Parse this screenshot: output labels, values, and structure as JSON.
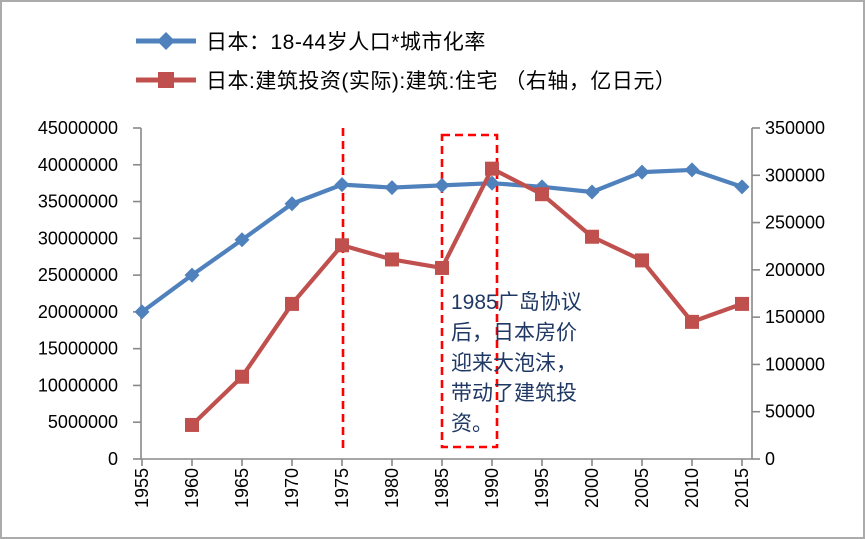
{
  "chart_data": {
    "type": "line",
    "title": "",
    "x_labels": [
      "1955",
      "1960",
      "1965",
      "1970",
      "1975",
      "1980",
      "1985",
      "1990",
      "1995",
      "2000",
      "2005",
      "2010",
      "2015"
    ],
    "series": [
      {
        "name": "日本：18-44岁人口*城市化率",
        "axis": "left",
        "color": "#4F81BD",
        "marker": "diamond",
        "values": [
          20000000,
          25000000,
          29800000,
          34700000,
          37300000,
          36900000,
          37200000,
          37500000,
          37000000,
          36300000,
          39000000,
          39300000,
          37000000
        ]
      },
      {
        "name": "日本:建筑投资(实际):建筑:住宅 （右轴，亿日元）",
        "axis": "right",
        "color": "#C0504D",
        "marker": "square",
        "values": [
          null,
          36000,
          87000,
          164000,
          226000,
          211000,
          202000,
          307000,
          280000,
          235000,
          210000,
          145000,
          164000
        ]
      }
    ],
    "left_axis": {
      "min": 0,
      "max": 45000000,
      "step": 5000000,
      "tick_labels": [
        "0",
        "5000000",
        "10000000",
        "15000000",
        "20000000",
        "25000000",
        "30000000",
        "35000000",
        "40000000",
        "45000000"
      ]
    },
    "right_axis": {
      "min": 0,
      "max": 350000,
      "step": 50000,
      "tick_labels": [
        "0",
        "50000",
        "100000",
        "150000",
        "200000",
        "250000",
        "300000",
        "350000"
      ]
    },
    "grid": false,
    "legend_position": "top-left",
    "axis_color": "#898989",
    "annotations": {
      "vline": {
        "x_label": "1975",
        "color": "#FF0000"
      },
      "box": {
        "from_label": "1985",
        "to_label": "1990",
        "color": "#FF0000"
      },
      "note": {
        "lines": [
          "1985广岛协议",
          "后，日本房价",
          "迎来大泡沫，",
          "带动了建筑投",
          "资。"
        ],
        "color": "#1F3864"
      }
    }
  }
}
